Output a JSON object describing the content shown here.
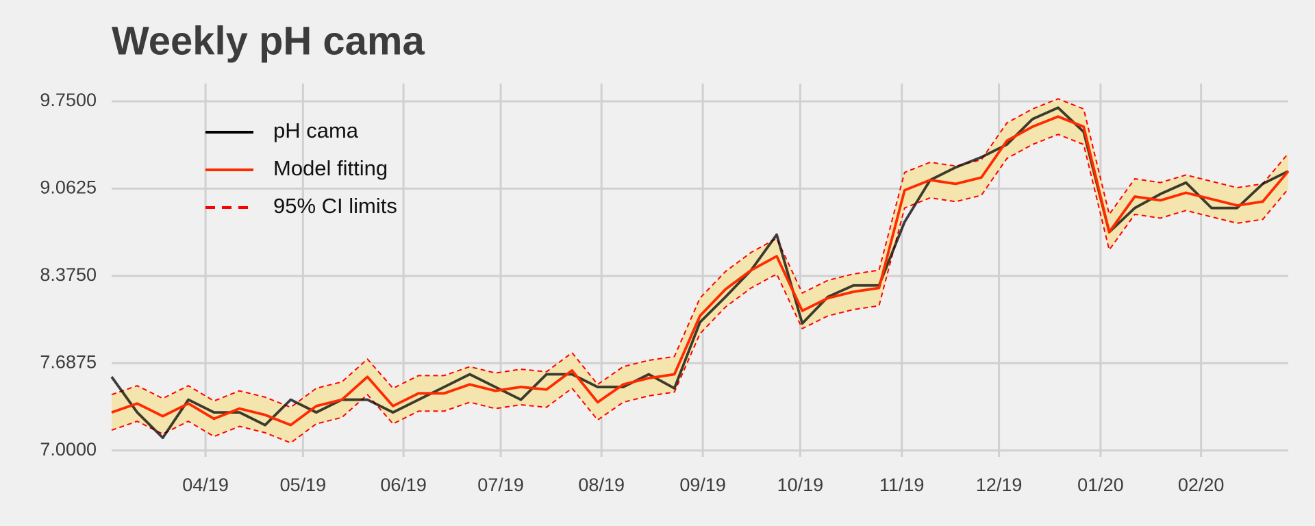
{
  "chart_data": {
    "type": "line",
    "title": "Weekly pH cama",
    "x": [
      0,
      1,
      2,
      3,
      4,
      5,
      6,
      7,
      8,
      9,
      10,
      11,
      12,
      13,
      14,
      15,
      16,
      17,
      18,
      19,
      20,
      21,
      22,
      23,
      24,
      25,
      26,
      27,
      28,
      29,
      30,
      31,
      32,
      33,
      34,
      35,
      36,
      37,
      38,
      39,
      40,
      41,
      42,
      43,
      44,
      45,
      46
    ],
    "xlim": [
      0,
      46
    ],
    "xticks": [
      {
        "value": 3.67,
        "label": "04/19"
      },
      {
        "value": 7.48,
        "label": "05/19"
      },
      {
        "value": 11.41,
        "label": "06/19"
      },
      {
        "value": 15.21,
        "label": "07/19"
      },
      {
        "value": 19.15,
        "label": "08/19"
      },
      {
        "value": 23.11,
        "label": "09/19"
      },
      {
        "value": 26.92,
        "label": "10/19"
      },
      {
        "value": 30.89,
        "label": "11/19"
      },
      {
        "value": 34.69,
        "label": "12/19"
      },
      {
        "value": 38.66,
        "label": "01/20"
      },
      {
        "value": 42.59,
        "label": "02/20"
      }
    ],
    "ylim": [
      6.95,
      9.89
    ],
    "yticks": [
      {
        "value": 7.0,
        "label": "7.0000"
      },
      {
        "value": 7.6875,
        "label": "7.6875"
      },
      {
        "value": 8.375,
        "label": "8.3750"
      },
      {
        "value": 9.0625,
        "label": "9.0625"
      },
      {
        "value": 9.75,
        "label": "9.7500"
      }
    ],
    "grid": true,
    "legend": "upper left",
    "band_color": "#f3e5ad",
    "series": [
      {
        "name": "pH cama",
        "color": "#000000",
        "values": [
          7.58,
          7.3,
          7.1,
          7.4,
          7.3,
          7.3,
          7.2,
          7.4,
          7.3,
          7.4,
          7.4,
          7.3,
          7.4,
          7.5,
          7.6,
          7.5,
          7.4,
          7.6,
          7.6,
          7.5,
          7.5,
          7.6,
          7.49,
          8.01,
          8.21,
          8.42,
          8.7,
          8.0,
          8.21,
          8.3,
          8.3,
          8.8,
          9.13,
          9.23,
          9.31,
          9.41,
          9.61,
          9.7,
          9.51,
          8.72,
          8.91,
          9.02,
          9.11,
          8.91,
          8.91,
          9.1,
          9.2
        ]
      },
      {
        "name": "Model fitting",
        "color": "#ff2a00",
        "values": [
          7.3,
          7.37,
          7.27,
          7.37,
          7.25,
          7.33,
          7.28,
          7.2,
          7.35,
          7.4,
          7.58,
          7.35,
          7.45,
          7.45,
          7.52,
          7.47,
          7.5,
          7.48,
          7.63,
          7.38,
          7.52,
          7.57,
          7.6,
          8.06,
          8.27,
          8.42,
          8.53,
          8.1,
          8.2,
          8.25,
          8.28,
          9.05,
          9.13,
          9.1,
          9.15,
          9.44,
          9.55,
          9.63,
          9.55,
          8.72,
          9.0,
          8.97,
          9.03,
          8.98,
          8.93,
          8.96,
          9.2
        ]
      },
      {
        "name": "95% CI limits",
        "color": "#ff0000",
        "dashed": true,
        "values": [
          7.44,
          7.51,
          7.41,
          7.51,
          7.39,
          7.47,
          7.42,
          7.34,
          7.49,
          7.54,
          7.72,
          7.49,
          7.59,
          7.59,
          7.66,
          7.61,
          7.64,
          7.62,
          7.77,
          7.52,
          7.66,
          7.71,
          7.74,
          8.2,
          8.41,
          8.56,
          8.67,
          8.24,
          8.34,
          8.39,
          8.42,
          9.19,
          9.27,
          9.24,
          9.29,
          9.58,
          9.69,
          9.77,
          9.69,
          8.86,
          9.14,
          9.11,
          9.17,
          9.12,
          9.07,
          9.1,
          9.34
        ]
      },
      {
        "color": "#ff0000",
        "dashed": true,
        "values": [
          7.16,
          7.23,
          7.13,
          7.23,
          7.11,
          7.19,
          7.14,
          7.06,
          7.21,
          7.26,
          7.44,
          7.21,
          7.31,
          7.31,
          7.38,
          7.33,
          7.36,
          7.34,
          7.49,
          7.24,
          7.38,
          7.43,
          7.46,
          7.92,
          8.13,
          8.28,
          8.39,
          7.96,
          8.06,
          8.11,
          8.14,
          8.91,
          8.99,
          8.96,
          9.01,
          9.3,
          9.41,
          9.49,
          9.41,
          8.58,
          8.86,
          8.83,
          8.89,
          8.84,
          8.79,
          8.82,
          9.06
        ]
      }
    ]
  }
}
